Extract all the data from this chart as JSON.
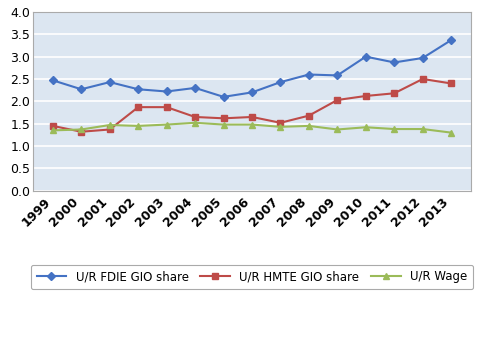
{
  "years": [
    1999,
    2000,
    2001,
    2002,
    2003,
    2004,
    2005,
    2006,
    2007,
    2008,
    2009,
    2010,
    2011,
    2012,
    2013
  ],
  "fdie": [
    2.47,
    2.27,
    2.43,
    2.27,
    2.22,
    2.3,
    2.1,
    2.2,
    2.43,
    2.6,
    2.58,
    3.0,
    2.87,
    2.97,
    3.37
  ],
  "hmte": [
    1.45,
    1.32,
    1.37,
    1.87,
    1.87,
    1.65,
    1.62,
    1.65,
    1.52,
    1.68,
    2.03,
    2.12,
    2.18,
    2.5,
    2.4
  ],
  "wage": [
    1.35,
    1.37,
    1.47,
    1.45,
    1.48,
    1.52,
    1.48,
    1.48,
    1.43,
    1.45,
    1.37,
    1.42,
    1.38,
    1.38,
    1.3
  ],
  "fdie_color": "#4472C4",
  "hmte_color": "#BE4B48",
  "wage_color": "#9BBB59",
  "fdie_label": "U/R FDIE GIO share",
  "hmte_label": "U/R HMTE GIO share",
  "wage_label": "U/R Wage",
  "ylim": [
    0,
    4
  ],
  "yticks": [
    0,
    0.5,
    1.0,
    1.5,
    2.0,
    2.5,
    3.0,
    3.5,
    4.0
  ],
  "plot_bg": "#DCE6F1",
  "fig_bg": "#FFFFFF",
  "grid_color": "#FFFFFF",
  "tick_label_fontsize": 9,
  "legend_fontsize": 8.5
}
